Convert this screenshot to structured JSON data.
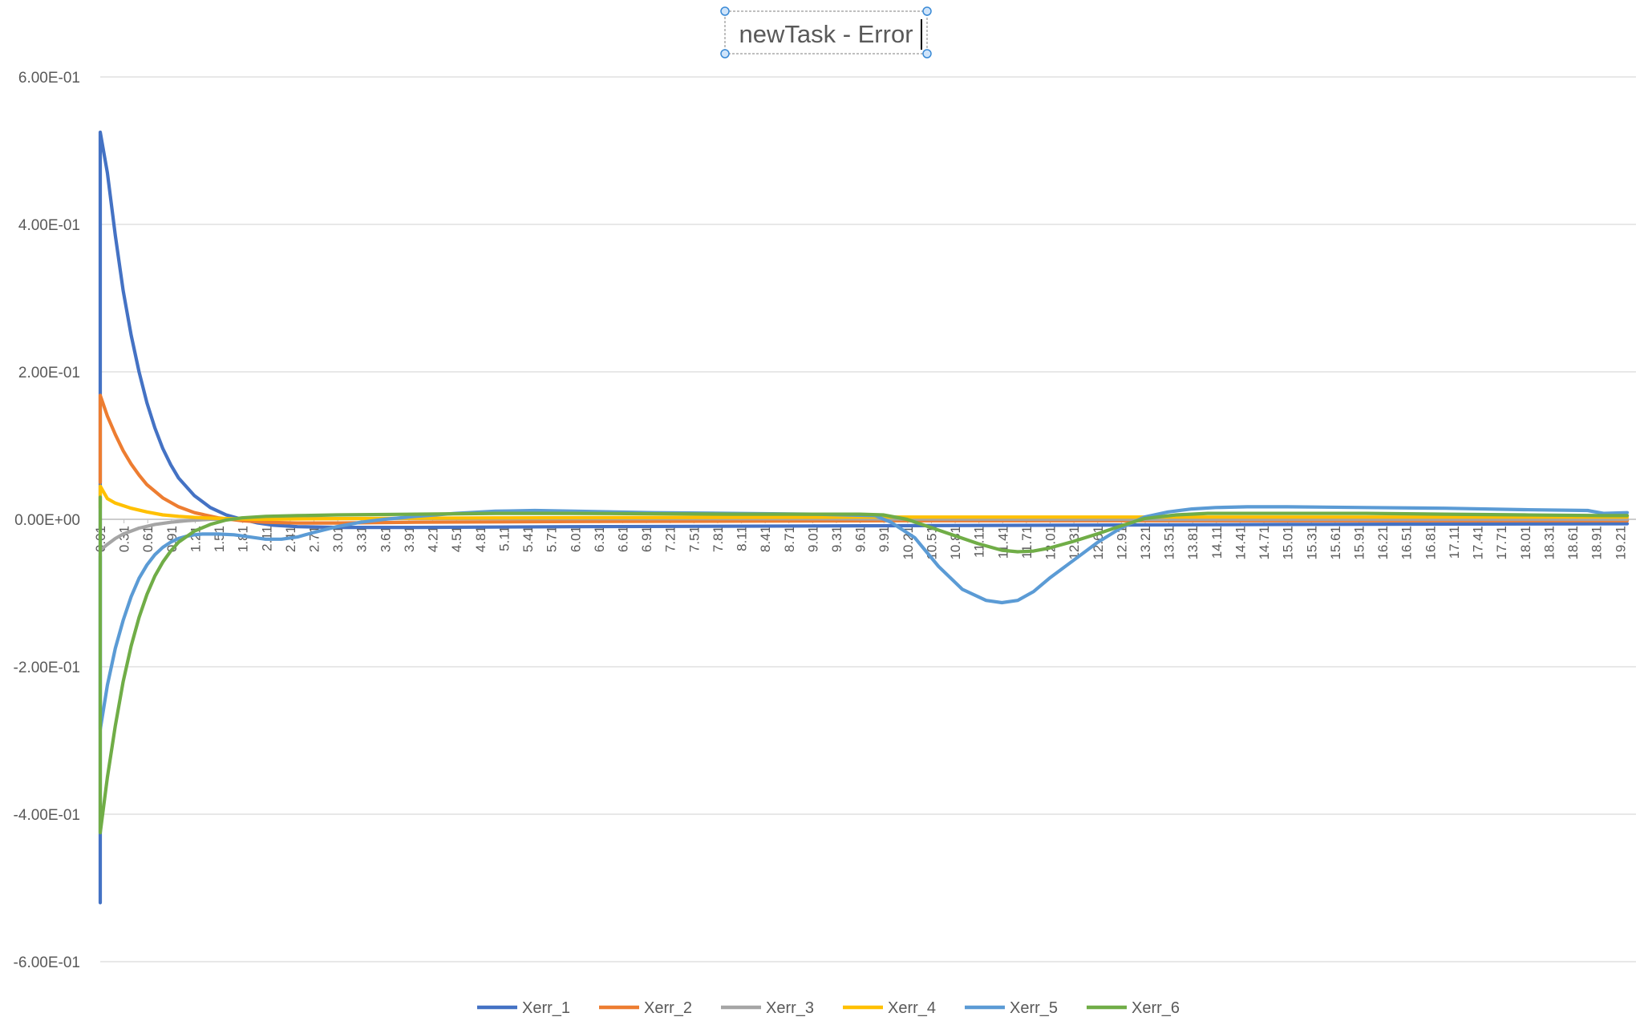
{
  "chart_data": {
    "type": "line",
    "title": "newTask - Error",
    "xlabel": "",
    "ylabel": "",
    "ylim": [
      -0.6,
      0.6
    ],
    "yticks": [
      "6.00E-01",
      "4.00E-01",
      "2.00E-01",
      "0.00E+00",
      "-2.00E-01",
      "-4.00E-01",
      "-6.00E-01"
    ],
    "ytick_values": [
      0.6,
      0.4,
      0.2,
      0,
      -0.2,
      -0.4,
      -0.6
    ],
    "xlim": [
      0.01,
      19.41
    ],
    "xticks": [
      "0.01",
      "0.31",
      "0.61",
      "0.91",
      "1.21",
      "1.51",
      "1.81",
      "2.11",
      "2.41",
      "2.71",
      "3.01",
      "3.31",
      "3.61",
      "3.91",
      "4.21",
      "4.51",
      "4.81",
      "5.11",
      "5.41",
      "5.71",
      "6.01",
      "6.31",
      "6.61",
      "6.91",
      "7.21",
      "7.51",
      "7.81",
      "8.11",
      "8.41",
      "8.71",
      "9.01",
      "9.31",
      "9.61",
      "9.91",
      "10.21",
      "10.51",
      "10.81",
      "11.11",
      "11.41",
      "11.71",
      "12.01",
      "12.31",
      "12.61",
      "12.91",
      "13.21",
      "13.51",
      "13.81",
      "14.11",
      "14.41",
      "14.71",
      "15.01",
      "15.31",
      "15.61",
      "15.91",
      "16.21",
      "16.51",
      "16.81",
      "17.11",
      "17.41",
      "17.71",
      "18.01",
      "18.31",
      "18.61",
      "18.91",
      "19.21"
    ],
    "grid": true,
    "legend_position": "bottom",
    "series": [
      {
        "name": "Xerr_1",
        "color": "#4472C4",
        "x": [
          0.01,
          0.01,
          0.01,
          0.1,
          0.2,
          0.3,
          0.4,
          0.5,
          0.6,
          0.7,
          0.8,
          0.9,
          1.0,
          1.2,
          1.4,
          1.6,
          1.8,
          2.0,
          2.2,
          2.5,
          3.0,
          4.0,
          6.0,
          9.0,
          12.0,
          15.0,
          19.3
        ],
        "y": [
          -0.52,
          0.0,
          0.525,
          0.47,
          0.385,
          0.31,
          0.25,
          0.2,
          0.158,
          0.124,
          0.096,
          0.074,
          0.056,
          0.032,
          0.016,
          0.006,
          0.0,
          -0.005,
          -0.008,
          -0.01,
          -0.011,
          -0.011,
          -0.01,
          -0.009,
          -0.008,
          -0.007,
          -0.006
        ]
      },
      {
        "name": "Xerr_2",
        "color": "#ED7D31",
        "x": [
          0.01,
          0.01,
          0.1,
          0.2,
          0.3,
          0.4,
          0.5,
          0.6,
          0.8,
          1.0,
          1.2,
          1.5,
          1.8,
          2.1,
          2.5,
          3.0,
          4.0,
          6.0,
          10.0,
          15.0,
          19.3
        ],
        "y": [
          0.05,
          0.168,
          0.14,
          0.115,
          0.093,
          0.075,
          0.06,
          0.047,
          0.029,
          0.017,
          0.009,
          0.002,
          -0.002,
          -0.004,
          -0.005,
          -0.005,
          -0.004,
          -0.003,
          -0.002,
          -0.002,
          -0.002
        ]
      },
      {
        "name": "Xerr_3",
        "color": "#A5A5A5",
        "x": [
          0.01,
          0.1,
          0.2,
          0.3,
          0.5,
          0.7,
          0.9,
          1.1,
          1.4,
          1.8,
          2.5,
          4.0,
          8.0,
          12.0,
          16.0,
          19.3
        ],
        "y": [
          -0.042,
          -0.034,
          -0.026,
          -0.02,
          -0.012,
          -0.007,
          -0.004,
          -0.002,
          0.0,
          0.001,
          0.001,
          0.001,
          0.001,
          0.0,
          0.0,
          0.0
        ]
      },
      {
        "name": "Xerr_4",
        "color": "#FFC000",
        "x": [
          0.01,
          0.01,
          0.1,
          0.2,
          0.4,
          0.6,
          0.8,
          1.0,
          1.3,
          1.6,
          2.0,
          3.0,
          5.0,
          10.0,
          15.0,
          19.3
        ],
        "y": [
          0.015,
          0.045,
          0.028,
          0.022,
          0.015,
          0.01,
          0.006,
          0.004,
          0.002,
          0.001,
          0.0,
          0.001,
          0.002,
          0.003,
          0.003,
          0.003
        ]
      },
      {
        "name": "Xerr_5",
        "color": "#5B9BD5",
        "x": [
          0.01,
          0.01,
          0.1,
          0.2,
          0.3,
          0.4,
          0.5,
          0.6,
          0.7,
          0.8,
          0.9,
          1.0,
          1.1,
          1.2,
          1.3,
          1.5,
          1.7,
          1.9,
          2.1,
          2.3,
          2.5,
          2.7,
          3.0,
          3.3,
          3.6,
          4.0,
          4.5,
          5.0,
          5.5,
          6.0,
          7.0,
          8.0,
          9.0,
          9.8,
          10.0,
          10.3,
          10.6,
          10.9,
          11.2,
          11.4,
          11.6,
          11.8,
          12.0,
          12.3,
          12.6,
          12.9,
          13.2,
          13.5,
          13.8,
          14.1,
          14.5,
          15.0,
          16.0,
          17.0,
          18.0,
          18.8,
          19.0,
          19.3
        ],
        "y": [
          -0.05,
          -0.285,
          -0.225,
          -0.175,
          -0.137,
          -0.105,
          -0.08,
          -0.062,
          -0.048,
          -0.038,
          -0.031,
          -0.026,
          -0.023,
          -0.021,
          -0.02,
          -0.02,
          -0.021,
          -0.024,
          -0.027,
          -0.027,
          -0.024,
          -0.018,
          -0.01,
          -0.004,
          0.0,
          0.004,
          0.008,
          0.011,
          0.012,
          0.011,
          0.009,
          0.008,
          0.007,
          0.005,
          -0.004,
          -0.025,
          -0.064,
          -0.095,
          -0.11,
          -0.113,
          -0.11,
          -0.098,
          -0.08,
          -0.056,
          -0.032,
          -0.012,
          0.003,
          0.01,
          0.014,
          0.016,
          0.017,
          0.017,
          0.016,
          0.015,
          0.013,
          0.012,
          0.008,
          0.009
        ]
      },
      {
        "name": "Xerr_6",
        "color": "#70AD47",
        "x": [
          0.01,
          0.01,
          0.01,
          0.1,
          0.2,
          0.3,
          0.4,
          0.5,
          0.6,
          0.7,
          0.8,
          0.9,
          1.0,
          1.2,
          1.4,
          1.6,
          1.8,
          2.1,
          2.5,
          3.0,
          4.0,
          5.0,
          6.0,
          8.0,
          9.6,
          9.9,
          10.2,
          10.5,
          10.8,
          11.1,
          11.4,
          11.6,
          11.8,
          12.0,
          12.3,
          12.6,
          12.9,
          13.2,
          13.6,
          14.0,
          15.0,
          16.0,
          17.0,
          18.0,
          19.0,
          19.3
        ],
        "y": [
          0.03,
          -0.05,
          -0.425,
          -0.35,
          -0.28,
          -0.22,
          -0.172,
          -0.133,
          -0.102,
          -0.077,
          -0.058,
          -0.043,
          -0.031,
          -0.016,
          -0.007,
          -0.001,
          0.002,
          0.004,
          0.005,
          0.006,
          0.007,
          0.008,
          0.008,
          0.007,
          0.007,
          0.006,
          0.0,
          -0.011,
          -0.022,
          -0.033,
          -0.042,
          -0.044,
          -0.043,
          -0.039,
          -0.03,
          -0.02,
          -0.009,
          0.001,
          0.006,
          0.008,
          0.008,
          0.008,
          0.007,
          0.006,
          0.005,
          0.005
        ]
      }
    ]
  }
}
